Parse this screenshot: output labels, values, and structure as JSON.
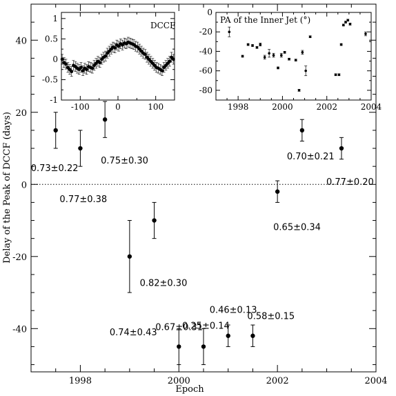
{
  "chart_data": [
    {
      "type": "scatter",
      "xlabel": "Epoch",
      "ylabel": "Delay of the Peak of DCCF (days)",
      "xlim": [
        1997.0,
        2004.0
      ],
      "ylim": [
        -52,
        50
      ],
      "x_ticks": [
        "1998",
        "2000",
        "2002",
        "2004"
      ],
      "y_ticks": [
        "-40",
        "-20",
        "0",
        "20",
        "40"
      ],
      "reference_line": 0,
      "points": [
        {
          "x": 1997.5,
          "y": 15,
          "err": 5,
          "label": "0.73±0.22"
        },
        {
          "x": 1998.0,
          "y": 10,
          "err": 5,
          "label": "0.77±0.38"
        },
        {
          "x": 1998.5,
          "y": 18,
          "err": 5,
          "label": "0.75±0.30"
        },
        {
          "x": 1999.0,
          "y": -20,
          "err": 10,
          "label": "0.74±0.43"
        },
        {
          "x": 1999.5,
          "y": -10,
          "err": 5,
          "label": "0.82±0.30"
        },
        {
          "x": 2000.0,
          "y": -45,
          "err": 5,
          "label": "0.67±0.31"
        },
        {
          "x": 2000.5,
          "y": -45,
          "err": 5,
          "label": "0.25±0.14"
        },
        {
          "x": 2001.0,
          "y": -42,
          "err": 3,
          "label": "0.46±0.13"
        },
        {
          "x": 2001.5,
          "y": -42,
          "err": 3,
          "label": "0.58±0.15"
        },
        {
          "x": 2002.0,
          "y": -2,
          "err": 3,
          "label": "0.65±0.34"
        },
        {
          "x": 2002.5,
          "y": 15,
          "err": 3,
          "label": "0.70±0.21"
        },
        {
          "x": 2003.3,
          "y": 10,
          "err": 3,
          "label": "0.77±0.20"
        }
      ]
    },
    {
      "type": "scatter",
      "title": "DCCF",
      "xlim": [
        -150,
        150
      ],
      "ylim": [
        -1,
        1.15
      ],
      "x_ticks": [
        "-100",
        "0",
        "100"
      ],
      "y_ticks": [
        "-1",
        "-0.5",
        "0",
        "0.5",
        "1"
      ],
      "x": [
        -148,
        -143,
        -138,
        -133,
        -128,
        -123,
        -118,
        -113,
        -108,
        -103,
        -98,
        -93,
        -88,
        -83,
        -78,
        -73,
        -68,
        -63,
        -58,
        -53,
        -48,
        -43,
        -38,
        -33,
        -28,
        -23,
        -18,
        -13,
        -8,
        -3,
        2,
        7,
        12,
        17,
        22,
        27,
        32,
        37,
        42,
        47,
        52,
        57,
        62,
        67,
        72,
        77,
        82,
        87,
        92,
        97,
        102,
        107,
        112,
        117,
        122,
        127,
        132,
        137,
        142,
        147
      ],
      "y": [
        0.0,
        -0.08,
        -0.12,
        -0.2,
        -0.25,
        -0.3,
        -0.15,
        -0.18,
        -0.22,
        -0.25,
        -0.2,
        -0.28,
        -0.22,
        -0.25,
        -0.18,
        -0.2,
        -0.22,
        -0.15,
        -0.1,
        -0.05,
        -0.08,
        0.0,
        0.05,
        0.08,
        0.15,
        0.2,
        0.25,
        0.3,
        0.28,
        0.35,
        0.32,
        0.38,
        0.35,
        0.4,
        0.38,
        0.42,
        0.4,
        0.38,
        0.36,
        0.32,
        0.3,
        0.25,
        0.2,
        0.15,
        0.12,
        0.05,
        0.0,
        -0.05,
        -0.1,
        -0.15,
        -0.2,
        -0.22,
        -0.25,
        -0.28,
        -0.2,
        -0.15,
        -0.1,
        -0.05,
        0.05,
        0.0
      ],
      "err": 0.12
    },
    {
      "type": "scatter",
      "title": "PA of the Inner Jet (°)",
      "xlim": [
        1997.0,
        2004.0
      ],
      "ylim": [
        -90,
        0
      ],
      "x_ticks": [
        "1998",
        "2000",
        "2002",
        "2004"
      ],
      "y_ticks": [
        "0",
        "-20",
        "-40",
        "-60",
        "-80"
      ],
      "points": [
        {
          "x": 1997.6,
          "y": -20,
          "err": 5
        },
        {
          "x": 1998.2,
          "y": -45,
          "err": 1
        },
        {
          "x": 1998.45,
          "y": -33,
          "err": 1
        },
        {
          "x": 1998.65,
          "y": -34,
          "err": 1
        },
        {
          "x": 1998.85,
          "y": -36,
          "err": 1
        },
        {
          "x": 1999.0,
          "y": -33,
          "err": 1.5
        },
        {
          "x": 1999.2,
          "y": -46,
          "err": 2
        },
        {
          "x": 1999.4,
          "y": -42,
          "err": 4
        },
        {
          "x": 1999.6,
          "y": -44,
          "err": 2
        },
        {
          "x": 1999.8,
          "y": -57,
          "err": 1
        },
        {
          "x": 1999.95,
          "y": -44,
          "err": 2
        },
        {
          "x": 2000.1,
          "y": -41,
          "err": 1
        },
        {
          "x": 2000.3,
          "y": -48,
          "err": 1
        },
        {
          "x": 2000.6,
          "y": -49,
          "err": 1
        },
        {
          "x": 2000.75,
          "y": -80,
          "err": 1
        },
        {
          "x": 2000.9,
          "y": -41,
          "err": 2
        },
        {
          "x": 2001.05,
          "y": -60,
          "err": 5
        },
        {
          "x": 2001.25,
          "y": -25,
          "err": 1
        },
        {
          "x": 2002.4,
          "y": -64,
          "err": 1
        },
        {
          "x": 2002.55,
          "y": -64,
          "err": 1
        },
        {
          "x": 2002.65,
          "y": -33,
          "err": 1
        },
        {
          "x": 2002.75,
          "y": -13,
          "err": 1
        },
        {
          "x": 2002.85,
          "y": -10,
          "err": 1
        },
        {
          "x": 2002.95,
          "y": -8,
          "err": 1
        },
        {
          "x": 2003.05,
          "y": -12,
          "err": 1
        },
        {
          "x": 2003.75,
          "y": -22,
          "err": 2
        }
      ]
    }
  ]
}
